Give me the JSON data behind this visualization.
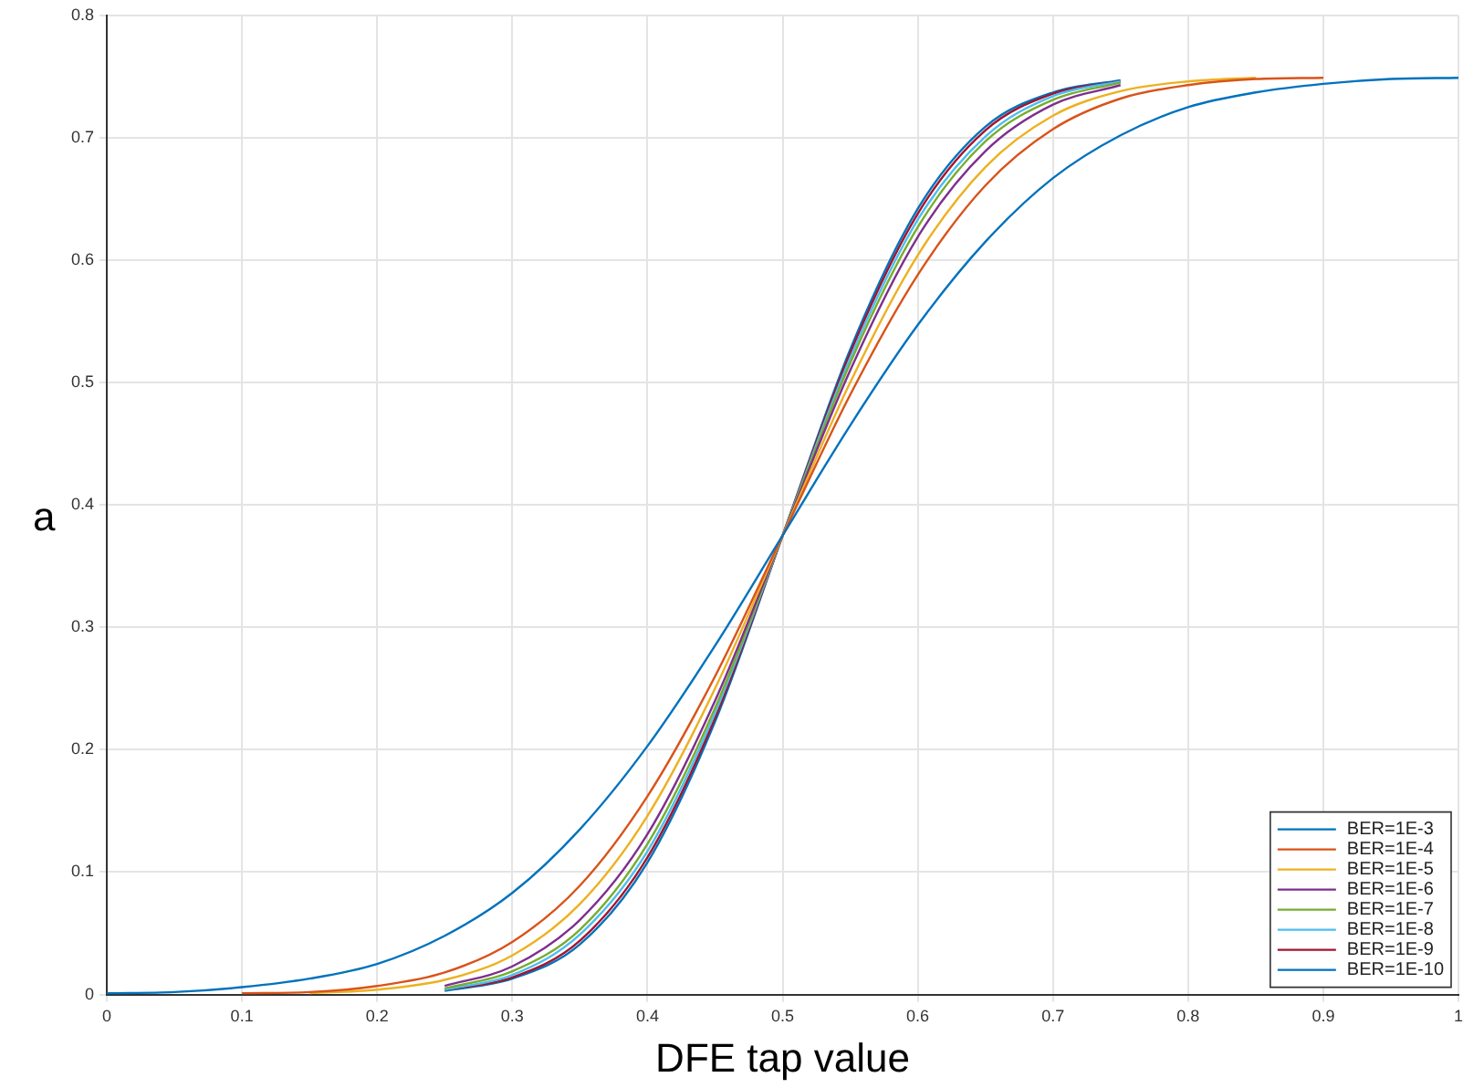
{
  "chart_data": {
    "type": "line",
    "xlabel": "DFE tap value",
    "ylabel": "a",
    "x": [
      0,
      0.05,
      0.1,
      0.15,
      0.2,
      0.25,
      0.3,
      0.35,
      0.4,
      0.45,
      0.5,
      0.55,
      0.6,
      0.65,
      0.7,
      0.75,
      0.8,
      0.85,
      0.9,
      0.95,
      1
    ],
    "series": [
      {
        "name": "BER=1E-3",
        "color": "#0072bd",
        "values": [
          0.001,
          0.002,
          0.006,
          0.013,
          0.025,
          0.048,
          0.083,
          0.135,
          0.203,
          0.285,
          0.375,
          0.465,
          0.547,
          0.615,
          0.667,
          0.702,
          0.725,
          0.737,
          0.744,
          0.748,
          0.749
        ]
      },
      {
        "name": "BER=1E-4",
        "color": "#d95319",
        "x": [
          0.1,
          0.15,
          0.2,
          0.25,
          0.3,
          0.35,
          0.4,
          0.45,
          0.5,
          0.55,
          0.6,
          0.65,
          0.7,
          0.75,
          0.8,
          0.85,
          0.9
        ],
        "values": [
          0.001,
          0.002,
          0.007,
          0.018,
          0.043,
          0.089,
          0.162,
          0.26,
          0.375,
          0.49,
          0.588,
          0.661,
          0.707,
          0.732,
          0.743,
          0.748,
          0.749
        ]
      },
      {
        "name": "BER=1E-5",
        "color": "#edb120",
        "x": [
          0.15,
          0.2,
          0.25,
          0.3,
          0.35,
          0.4,
          0.45,
          0.5,
          0.55,
          0.6,
          0.65,
          0.7,
          0.75,
          0.8,
          0.85
        ],
        "values": [
          0.001,
          0.004,
          0.012,
          0.032,
          0.074,
          0.146,
          0.25,
          0.375,
          0.5,
          0.604,
          0.676,
          0.718,
          0.738,
          0.746,
          0.749
        ]
      },
      {
        "name": "BER=1E-6",
        "color": "#7e2f8e",
        "x": [
          0.25,
          0.3,
          0.35,
          0.4,
          0.45,
          0.5,
          0.55,
          0.6,
          0.65,
          0.7,
          0.75
        ],
        "values": [
          0.007,
          0.023,
          0.061,
          0.131,
          0.24,
          0.375,
          0.51,
          0.619,
          0.689,
          0.727,
          0.743
        ]
      },
      {
        "name": "BER=1E-7",
        "color": "#77ac30",
        "x": [
          0.25,
          0.3,
          0.35,
          0.4,
          0.45,
          0.5,
          0.55,
          0.6,
          0.65,
          0.7,
          0.75
        ],
        "values": [
          0.005,
          0.019,
          0.053,
          0.123,
          0.234,
          0.375,
          0.516,
          0.627,
          0.697,
          0.731,
          0.745
        ]
      },
      {
        "name": "BER=1E-8",
        "color": "#4dbeee",
        "x": [
          0.25,
          0.3,
          0.35,
          0.4,
          0.45,
          0.5,
          0.55,
          0.6,
          0.65,
          0.7,
          0.75
        ],
        "values": [
          0.004,
          0.016,
          0.049,
          0.117,
          0.23,
          0.375,
          0.52,
          0.633,
          0.701,
          0.734,
          0.746
        ]
      },
      {
        "name": "BER=1E-9",
        "color": "#a2142f",
        "x": [
          0.25,
          0.3,
          0.35,
          0.4,
          0.45,
          0.5,
          0.55,
          0.6,
          0.65,
          0.7,
          0.75
        ],
        "values": [
          0.004,
          0.014,
          0.044,
          0.112,
          0.226,
          0.375,
          0.524,
          0.638,
          0.706,
          0.736,
          0.746
        ]
      },
      {
        "name": "BER=1E-10",
        "color": "#0072bd",
        "x": [
          0.25,
          0.3,
          0.35,
          0.4,
          0.45,
          0.5,
          0.55,
          0.6,
          0.65,
          0.7,
          0.75
        ],
        "values": [
          0.003,
          0.013,
          0.041,
          0.108,
          0.223,
          0.375,
          0.527,
          0.642,
          0.709,
          0.737,
          0.747
        ]
      }
    ],
    "xlim": [
      0,
      1
    ],
    "xticks": [
      0,
      0.1,
      0.2,
      0.3,
      0.4,
      0.5,
      0.6,
      0.7,
      0.8,
      0.9,
      1
    ],
    "ylim": [
      0,
      0.8
    ],
    "yticks": [
      0,
      0.1,
      0.2,
      0.3,
      0.4,
      0.5,
      0.6,
      0.7,
      0.8
    ],
    "grid": true,
    "legend": "bottom right",
    "marker": "none",
    "line_style": "solid"
  }
}
